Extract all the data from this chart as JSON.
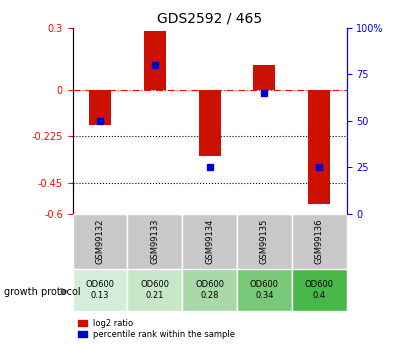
{
  "title": "GDS2592 / 465",
  "samples": [
    "GSM99132",
    "GSM99133",
    "GSM99134",
    "GSM99135",
    "GSM99136"
  ],
  "log2_ratio": [
    -0.17,
    0.285,
    -0.32,
    0.12,
    -0.55
  ],
  "percentile_rank": [
    50,
    80,
    25,
    65,
    25
  ],
  "protocol_label": "growth protocol",
  "protocol_values": [
    "OD600\n0.13",
    "OD600\n0.21",
    "OD600\n0.28",
    "OD600\n0.34",
    "OD600\n0.4"
  ],
  "protocol_colors": [
    "#d4edda",
    "#c8e6c8",
    "#a8d8a8",
    "#78c878",
    "#48b848"
  ],
  "ylim_left": [
    -0.6,
    0.3
  ],
  "ylim_right": [
    0,
    100
  ],
  "yticks_left": [
    -0.6,
    -0.45,
    -0.225,
    0,
    0.3
  ],
  "yticks_right": [
    0,
    25,
    50,
    75,
    100
  ],
  "ytick_left_labels": [
    "-0.6",
    "-0.45",
    "-0.225",
    "0",
    "0.3"
  ],
  "ytick_right_labels": [
    "0",
    "25",
    "50",
    "75",
    "100%"
  ],
  "hline_zero": 0.0,
  "hline_dotted1": -0.225,
  "hline_dotted2": -0.45,
  "bar_color": "#cc1100",
  "dot_color": "#0000cc",
  "bar_width": 0.4,
  "bg_color": "#ffffff",
  "plot_bg": "#ffffff",
  "gsm_cell_color": "#c8c8c8",
  "legend_bar_label": "log2 ratio",
  "legend_dot_label": "percentile rank within the sample"
}
